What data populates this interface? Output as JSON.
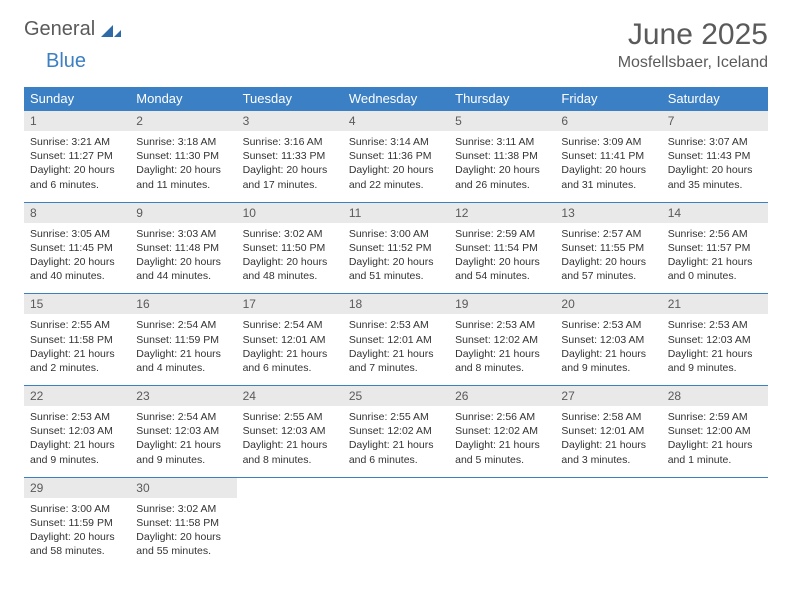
{
  "logo": {
    "word1": "General",
    "word2": "Blue"
  },
  "title": {
    "month": "June 2025",
    "location": "Mosfellsbaer, Iceland"
  },
  "colors": {
    "header_bg": "#3b7fc4",
    "header_fg": "#ffffff",
    "daynum_bg": "#e9e9e9",
    "text": "#333333",
    "border": "#3b7fc4"
  },
  "weekdays": [
    "Sunday",
    "Monday",
    "Tuesday",
    "Wednesday",
    "Thursday",
    "Friday",
    "Saturday"
  ],
  "weeks": [
    [
      {
        "num": "1",
        "sunrise": "Sunrise: 3:21 AM",
        "sunset": "Sunset: 11:27 PM",
        "daylight": "Daylight: 20 hours and 6 minutes."
      },
      {
        "num": "2",
        "sunrise": "Sunrise: 3:18 AM",
        "sunset": "Sunset: 11:30 PM",
        "daylight": "Daylight: 20 hours and 11 minutes."
      },
      {
        "num": "3",
        "sunrise": "Sunrise: 3:16 AM",
        "sunset": "Sunset: 11:33 PM",
        "daylight": "Daylight: 20 hours and 17 minutes."
      },
      {
        "num": "4",
        "sunrise": "Sunrise: 3:14 AM",
        "sunset": "Sunset: 11:36 PM",
        "daylight": "Daylight: 20 hours and 22 minutes."
      },
      {
        "num": "5",
        "sunrise": "Sunrise: 3:11 AM",
        "sunset": "Sunset: 11:38 PM",
        "daylight": "Daylight: 20 hours and 26 minutes."
      },
      {
        "num": "6",
        "sunrise": "Sunrise: 3:09 AM",
        "sunset": "Sunset: 11:41 PM",
        "daylight": "Daylight: 20 hours and 31 minutes."
      },
      {
        "num": "7",
        "sunrise": "Sunrise: 3:07 AM",
        "sunset": "Sunset: 11:43 PM",
        "daylight": "Daylight: 20 hours and 35 minutes."
      }
    ],
    [
      {
        "num": "8",
        "sunrise": "Sunrise: 3:05 AM",
        "sunset": "Sunset: 11:45 PM",
        "daylight": "Daylight: 20 hours and 40 minutes."
      },
      {
        "num": "9",
        "sunrise": "Sunrise: 3:03 AM",
        "sunset": "Sunset: 11:48 PM",
        "daylight": "Daylight: 20 hours and 44 minutes."
      },
      {
        "num": "10",
        "sunrise": "Sunrise: 3:02 AM",
        "sunset": "Sunset: 11:50 PM",
        "daylight": "Daylight: 20 hours and 48 minutes."
      },
      {
        "num": "11",
        "sunrise": "Sunrise: 3:00 AM",
        "sunset": "Sunset: 11:52 PM",
        "daylight": "Daylight: 20 hours and 51 minutes."
      },
      {
        "num": "12",
        "sunrise": "Sunrise: 2:59 AM",
        "sunset": "Sunset: 11:54 PM",
        "daylight": "Daylight: 20 hours and 54 minutes."
      },
      {
        "num": "13",
        "sunrise": "Sunrise: 2:57 AM",
        "sunset": "Sunset: 11:55 PM",
        "daylight": "Daylight: 20 hours and 57 minutes."
      },
      {
        "num": "14",
        "sunrise": "Sunrise: 2:56 AM",
        "sunset": "Sunset: 11:57 PM",
        "daylight": "Daylight: 21 hours and 0 minutes."
      }
    ],
    [
      {
        "num": "15",
        "sunrise": "Sunrise: 2:55 AM",
        "sunset": "Sunset: 11:58 PM",
        "daylight": "Daylight: 21 hours and 2 minutes."
      },
      {
        "num": "16",
        "sunrise": "Sunrise: 2:54 AM",
        "sunset": "Sunset: 11:59 PM",
        "daylight": "Daylight: 21 hours and 4 minutes."
      },
      {
        "num": "17",
        "sunrise": "Sunrise: 2:54 AM",
        "sunset": "Sunset: 12:01 AM",
        "daylight": "Daylight: 21 hours and 6 minutes."
      },
      {
        "num": "18",
        "sunrise": "Sunrise: 2:53 AM",
        "sunset": "Sunset: 12:01 AM",
        "daylight": "Daylight: 21 hours and 7 minutes."
      },
      {
        "num": "19",
        "sunrise": "Sunrise: 2:53 AM",
        "sunset": "Sunset: 12:02 AM",
        "daylight": "Daylight: 21 hours and 8 minutes."
      },
      {
        "num": "20",
        "sunrise": "Sunrise: 2:53 AM",
        "sunset": "Sunset: 12:03 AM",
        "daylight": "Daylight: 21 hours and 9 minutes."
      },
      {
        "num": "21",
        "sunrise": "Sunrise: 2:53 AM",
        "sunset": "Sunset: 12:03 AM",
        "daylight": "Daylight: 21 hours and 9 minutes."
      }
    ],
    [
      {
        "num": "22",
        "sunrise": "Sunrise: 2:53 AM",
        "sunset": "Sunset: 12:03 AM",
        "daylight": "Daylight: 21 hours and 9 minutes."
      },
      {
        "num": "23",
        "sunrise": "Sunrise: 2:54 AM",
        "sunset": "Sunset: 12:03 AM",
        "daylight": "Daylight: 21 hours and 9 minutes."
      },
      {
        "num": "24",
        "sunrise": "Sunrise: 2:55 AM",
        "sunset": "Sunset: 12:03 AM",
        "daylight": "Daylight: 21 hours and 8 minutes."
      },
      {
        "num": "25",
        "sunrise": "Sunrise: 2:55 AM",
        "sunset": "Sunset: 12:02 AM",
        "daylight": "Daylight: 21 hours and 6 minutes."
      },
      {
        "num": "26",
        "sunrise": "Sunrise: 2:56 AM",
        "sunset": "Sunset: 12:02 AM",
        "daylight": "Daylight: 21 hours and 5 minutes."
      },
      {
        "num": "27",
        "sunrise": "Sunrise: 2:58 AM",
        "sunset": "Sunset: 12:01 AM",
        "daylight": "Daylight: 21 hours and 3 minutes."
      },
      {
        "num": "28",
        "sunrise": "Sunrise: 2:59 AM",
        "sunset": "Sunset: 12:00 AM",
        "daylight": "Daylight: 21 hours and 1 minute."
      }
    ],
    [
      {
        "num": "29",
        "sunrise": "Sunrise: 3:00 AM",
        "sunset": "Sunset: 11:59 PM",
        "daylight": "Daylight: 20 hours and 58 minutes."
      },
      {
        "num": "30",
        "sunrise": "Sunrise: 3:02 AM",
        "sunset": "Sunset: 11:58 PM",
        "daylight": "Daylight: 20 hours and 55 minutes."
      },
      {
        "empty": true
      },
      {
        "empty": true
      },
      {
        "empty": true
      },
      {
        "empty": true
      },
      {
        "empty": true
      }
    ]
  ]
}
